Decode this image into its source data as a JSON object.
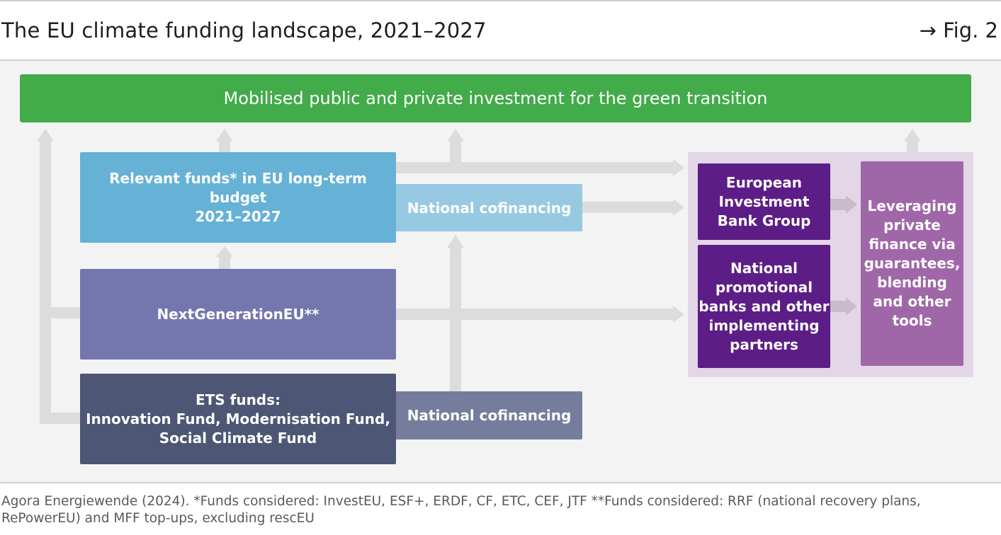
{
  "header": {
    "title": "The EU climate funding landscape, 2021–2027",
    "fig_ref": "→ Fig. 2"
  },
  "diagram": {
    "top_bar": "Mobilised public and private investment for the green transition",
    "eu_budget": [
      "Relevant funds* in EU long-term budget",
      "2021–2027"
    ],
    "cofinancing_upper": "National cofinancing",
    "ngeu": "NextGenerationEU**",
    "ets": [
      "ETS funds:",
      "Innovation Fund, Modernisation Fund,",
      "Social Climate Fund"
    ],
    "cofinancing_lower": "National cofinancing",
    "eib": [
      "European",
      "Investment",
      "Bank Group"
    ],
    "national_banks": [
      "National",
      "promotional",
      "banks and other",
      "implementing",
      "partners"
    ],
    "leveraging": [
      "Leveraging",
      "private",
      "finance via",
      "guarantees,",
      "blending",
      "and other",
      "tools"
    ]
  },
  "colors": {
    "top_bar": "#42ab4a",
    "eu_budget": "#66b1d6",
    "cofinancing_upper": "#98c9e2",
    "ngeu": "#7377ad",
    "ets": "#4d5674",
    "cofinancing_lower": "#767c9b",
    "bank_boxes": "#5c1d87",
    "leveraging": "#a067a8",
    "panel": "#e3d6e6",
    "arrows": "#dcdcdc"
  },
  "footer": {
    "source": "Agora Energiewende (2024). *Funds considered: InvestEU, ESF+, ERDF, CF, ETC, CEF, JTF **Funds considered: RRF (national recovery plans, RePowerEU) and MFF top-ups, excluding rescEU"
  }
}
